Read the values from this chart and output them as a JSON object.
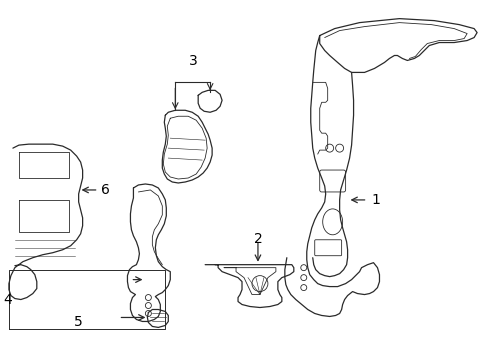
{
  "background_color": "#ffffff",
  "line_color": "#2a2a2a",
  "label_color": "#000000",
  "parts": {
    "part1_label": "1",
    "part2_label": "2",
    "part3_label": "3",
    "part4_label": "4",
    "part5_label": "5",
    "part6_label": "6"
  },
  "figsize": [
    4.9,
    3.6
  ],
  "dpi": 100
}
